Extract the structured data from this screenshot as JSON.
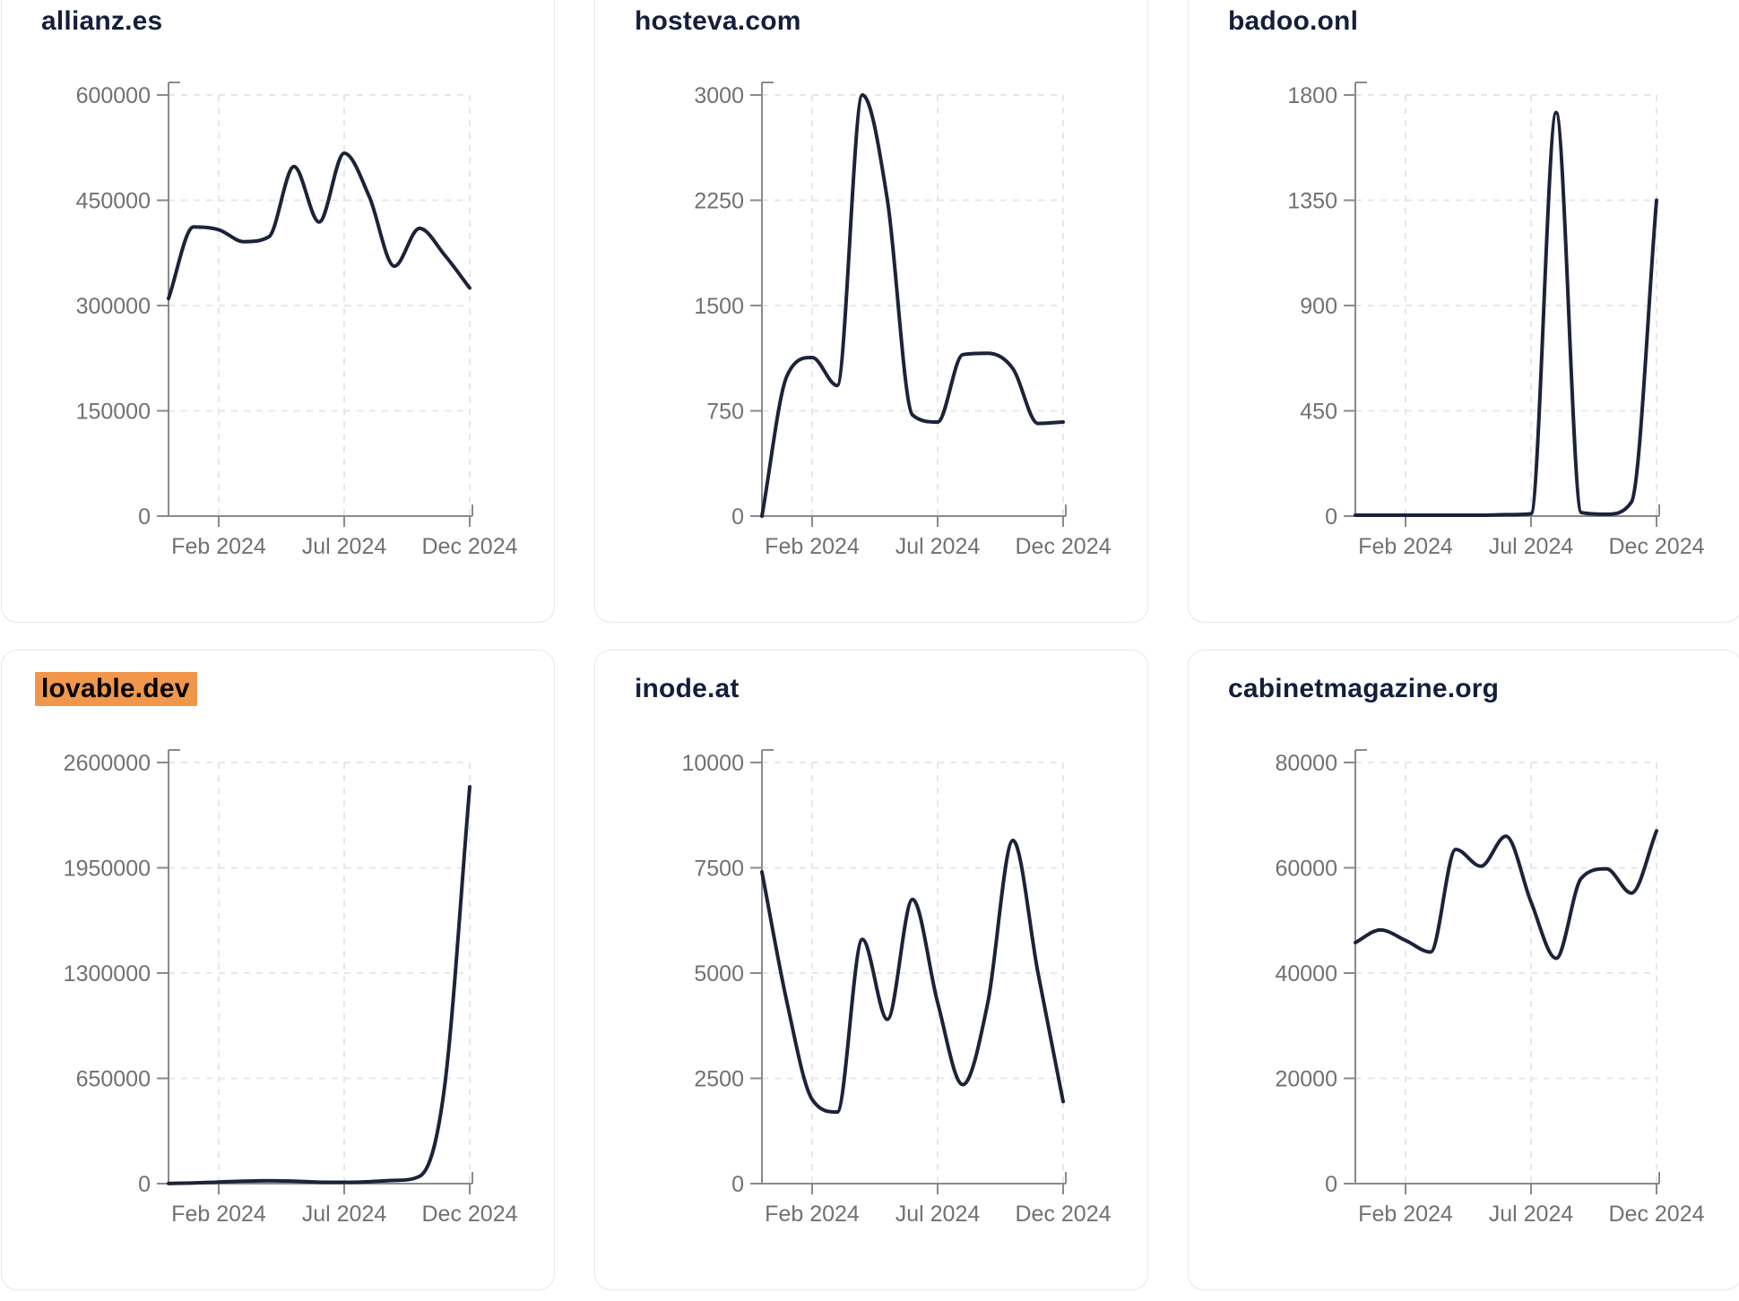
{
  "page": {
    "background_color": "#ffffff"
  },
  "style": {
    "card_background": "#ffffff",
    "card_border_color": "#e6e6ef",
    "title_color": "#131f3b",
    "highlight_background": "#f0974b",
    "highlight_text_color": "#000000",
    "line_color": "#1c2339",
    "axis_color": "#8a8a8a",
    "grid_color": "#e7e7ea",
    "tick_label_color": "#717171"
  },
  "x_axis": {
    "unit": "month",
    "start": "Dec 2023",
    "end": "Dec 2024",
    "points": 13,
    "tick_labels": [
      "Feb 2024",
      "Jul 2024",
      "Dec 2024"
    ],
    "tick_indices": [
      2,
      7,
      12
    ],
    "grid": "dashed"
  },
  "chart_data": [
    {
      "type": "line",
      "title": "allianz.es",
      "highlighted": false,
      "ylim": [
        0,
        600000
      ],
      "y_ticks": [
        0,
        150000,
        300000,
        450000,
        600000
      ],
      "x_tick_labels": [
        "Feb 2024",
        "Jul 2024",
        "Dec 2024"
      ],
      "values": [
        310000,
        412000,
        408000,
        391000,
        398000,
        498000,
        419000,
        517000,
        455000,
        356000,
        410000,
        372000,
        325000
      ]
    },
    {
      "type": "line",
      "title": "hosteva.com",
      "highlighted": false,
      "ylim": [
        0,
        3000
      ],
      "y_ticks": [
        0,
        750,
        1500,
        2250,
        3000
      ],
      "x_tick_labels": [
        "Feb 2024",
        "Jul 2024",
        "Dec 2024"
      ],
      "values": [
        0,
        1000,
        1130,
        930,
        3000,
        2250,
        720,
        670,
        1150,
        1160,
        1050,
        660,
        670
      ]
    },
    {
      "type": "line",
      "title": "badoo.onl",
      "highlighted": false,
      "ylim": [
        0,
        1800
      ],
      "y_ticks": [
        0,
        450,
        900,
        1350,
        1800
      ],
      "x_tick_labels": [
        "Feb 2024",
        "Jul 2024",
        "Dec 2024"
      ],
      "values": [
        4,
        4,
        4,
        4,
        4,
        4,
        6,
        10,
        1725,
        15,
        8,
        60,
        1350
      ]
    },
    {
      "type": "line",
      "title": "lovable.dev",
      "highlighted": true,
      "ylim": [
        0,
        2600000
      ],
      "y_ticks": [
        0,
        650000,
        1300000,
        1950000,
        2600000
      ],
      "x_tick_labels": [
        "Feb 2024",
        "Jul 2024",
        "Dec 2024"
      ],
      "values": [
        1000,
        4000,
        10000,
        15000,
        18000,
        15000,
        9000,
        8000,
        12000,
        20000,
        45000,
        600000,
        2450000
      ]
    },
    {
      "type": "line",
      "title": "inode.at",
      "highlighted": false,
      "ylim": [
        0,
        10000
      ],
      "y_ticks": [
        0,
        2500,
        5000,
        7500,
        10000
      ],
      "x_tick_labels": [
        "Feb 2024",
        "Jul 2024",
        "Dec 2024"
      ],
      "values": [
        7400,
        4300,
        2000,
        1700,
        5800,
        3900,
        6750,
        4300,
        2350,
        4300,
        8150,
        5000,
        1950
      ]
    },
    {
      "type": "line",
      "title": "cabinetmagazine.org",
      "highlighted": false,
      "ylim": [
        0,
        80000
      ],
      "y_ticks": [
        0,
        20000,
        40000,
        60000,
        80000
      ],
      "x_tick_labels": [
        "Feb 2024",
        "Jul 2024",
        "Dec 2024"
      ],
      "values": [
        45800,
        48200,
        46200,
        44000,
        63500,
        60300,
        66000,
        53500,
        42800,
        58000,
        59800,
        55200,
        67000
      ]
    }
  ]
}
